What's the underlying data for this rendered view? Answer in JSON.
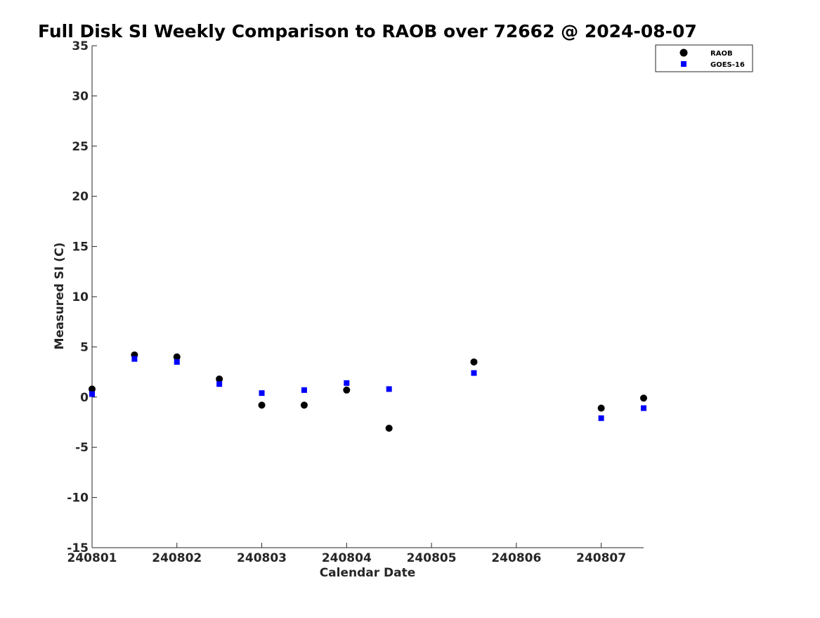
{
  "chart_data": {
    "type": "scatter",
    "title": "Full Disk SI Weekly Comparison to RAOB over 72662 @ 2024-08-07",
    "xlabel": "Calendar Date",
    "ylabel": "Measured SI (C)",
    "xlim": [
      1,
      7.5
    ],
    "ylim": [
      -15,
      35
    ],
    "x_ticks": [
      {
        "value": 1,
        "label": "240801"
      },
      {
        "value": 2,
        "label": "240802"
      },
      {
        "value": 3,
        "label": "240803"
      },
      {
        "value": 4,
        "label": "240804"
      },
      {
        "value": 5,
        "label": "240805"
      },
      {
        "value": 6,
        "label": "240806"
      },
      {
        "value": 7,
        "label": "240807"
      }
    ],
    "y_ticks": [
      {
        "value": 35,
        "label": "35"
      },
      {
        "value": 30,
        "label": "30"
      },
      {
        "value": 25,
        "label": "25"
      },
      {
        "value": 20,
        "label": "20"
      },
      {
        "value": 15,
        "label": "15"
      },
      {
        "value": 10,
        "label": "10"
      },
      {
        "value": 5,
        "label": "5"
      },
      {
        "value": 0,
        "label": "0"
      },
      {
        "value": -5,
        "label": "-5"
      },
      {
        "value": -10,
        "label": "-10"
      },
      {
        "value": -15,
        "label": "-15"
      }
    ],
    "grid": false,
    "legend_position": "top-right",
    "series": [
      {
        "name": "RAOB",
        "marker": "circle",
        "color": "#000000",
        "x": [
          1,
          1.5,
          2,
          2.5,
          3,
          3.5,
          4,
          4.5,
          5.5,
          7,
          7.5
        ],
        "y": [
          0.8,
          4.2,
          4.0,
          1.8,
          -0.8,
          -0.8,
          0.7,
          -3.1,
          3.5,
          -1.1,
          -0.1
        ]
      },
      {
        "name": "GOES-16",
        "marker": "square",
        "color": "#0000ff",
        "x": [
          1,
          1.5,
          2,
          2.5,
          3,
          3.5,
          4,
          4.5,
          5.5,
          7,
          7.5
        ],
        "y": [
          0.3,
          3.8,
          3.5,
          1.3,
          0.4,
          0.7,
          1.4,
          0.8,
          2.4,
          -2.1,
          -1.1
        ]
      }
    ]
  }
}
